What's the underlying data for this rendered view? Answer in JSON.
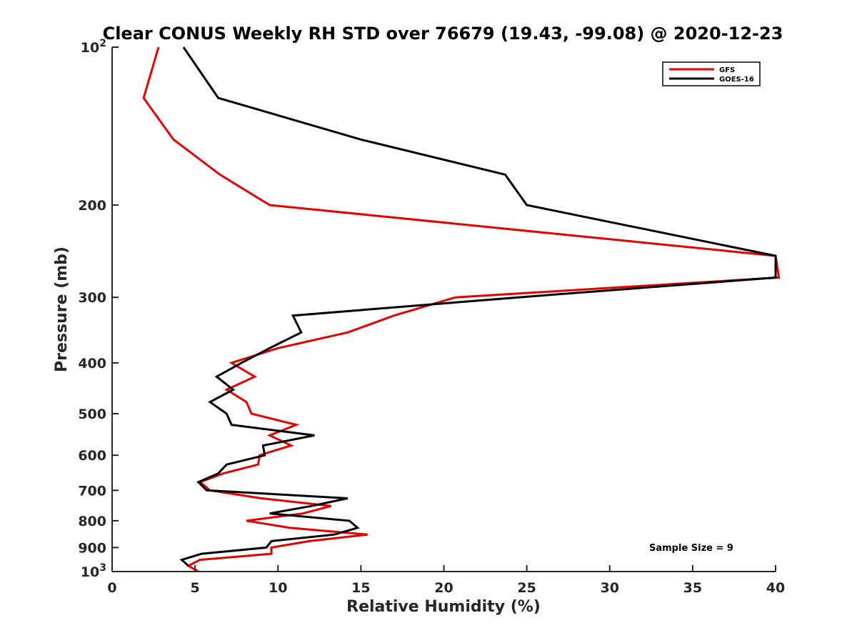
{
  "chart_data": {
    "type": "line",
    "title": "Clear CONUS Weekly RH STD over 76679 (19.43, -99.08) @ 2020-12-23",
    "xlabel": "Relative Humidity (%)",
    "ylabel": "Pressure (mb)",
    "xlim": [
      0,
      40
    ],
    "ylim": [
      100,
      1000
    ],
    "y_scale": "log",
    "y_reversed": true,
    "x_ticks": [
      "0",
      "5",
      "10",
      "15",
      "20",
      "25",
      "30",
      "35",
      "40"
    ],
    "y_ticks": [
      {
        "value": 100,
        "base": "10",
        "exp": "2"
      },
      {
        "value": 200,
        "label": "200"
      },
      {
        "value": 300,
        "label": "300"
      },
      {
        "value": 400,
        "label": "400"
      },
      {
        "value": 500,
        "label": "500"
      },
      {
        "value": 600,
        "label": "600"
      },
      {
        "value": 700,
        "label": "700"
      },
      {
        "value": 800,
        "label": "800"
      },
      {
        "value": 900,
        "label": "900"
      },
      {
        "value": 1000,
        "base": "10",
        "exp": "3"
      }
    ],
    "legend_position": "top-right",
    "grid": false,
    "annotation": "Sample Size = 9",
    "series": [
      {
        "name": "GFS",
        "color": "#e00000",
        "points": [
          [
            2.8,
            100
          ],
          [
            1.9,
            125
          ],
          [
            3.7,
            150
          ],
          [
            6.5,
            175
          ],
          [
            9.5,
            200
          ],
          [
            40.0,
            250
          ],
          [
            40.2,
            275
          ],
          [
            20.7,
            300
          ],
          [
            17.0,
            325
          ],
          [
            14.2,
            350
          ],
          [
            10.0,
            375
          ],
          [
            7.2,
            400
          ],
          [
            8.6,
            425
          ],
          [
            6.9,
            450
          ],
          [
            8.1,
            475
          ],
          [
            8.4,
            500
          ],
          [
            11.1,
            525
          ],
          [
            9.5,
            550
          ],
          [
            10.8,
            575
          ],
          [
            8.9,
            600
          ],
          [
            8.8,
            625
          ],
          [
            6.7,
            650
          ],
          [
            5.3,
            675
          ],
          [
            5.9,
            700
          ],
          [
            9.0,
            725
          ],
          [
            13.2,
            750
          ],
          [
            11.5,
            775
          ],
          [
            8.1,
            800
          ],
          [
            10.7,
            825
          ],
          [
            15.4,
            850
          ],
          [
            11.9,
            875
          ],
          [
            9.6,
            900
          ],
          [
            9.6,
            925
          ],
          [
            5.3,
            950
          ],
          [
            4.6,
            975
          ],
          [
            5.2,
            1000
          ]
        ]
      },
      {
        "name": "GOES-16",
        "color": "#000000",
        "points": [
          [
            4.3,
            100
          ],
          [
            6.4,
            125
          ],
          [
            15.0,
            150
          ],
          [
            23.7,
            175
          ],
          [
            25.0,
            200
          ],
          [
            40.0,
            250
          ],
          [
            40.0,
            275
          ],
          [
            24.5,
            300
          ],
          [
            10.9,
            325
          ],
          [
            11.4,
            350
          ],
          [
            9.5,
            375
          ],
          [
            7.8,
            400
          ],
          [
            6.3,
            425
          ],
          [
            7.3,
            450
          ],
          [
            5.9,
            475
          ],
          [
            6.9,
            500
          ],
          [
            7.2,
            525
          ],
          [
            12.2,
            550
          ],
          [
            9.1,
            575
          ],
          [
            9.2,
            600
          ],
          [
            6.9,
            625
          ],
          [
            6.4,
            650
          ],
          [
            5.2,
            675
          ],
          [
            5.7,
            700
          ],
          [
            14.2,
            725
          ],
          [
            12.0,
            750
          ],
          [
            9.5,
            775
          ],
          [
            14.3,
            800
          ],
          [
            14.8,
            825
          ],
          [
            13.4,
            850
          ],
          [
            9.6,
            875
          ],
          [
            9.3,
            900
          ],
          [
            5.4,
            925
          ],
          [
            4.2,
            950
          ],
          [
            4.6,
            975
          ]
        ]
      }
    ]
  }
}
